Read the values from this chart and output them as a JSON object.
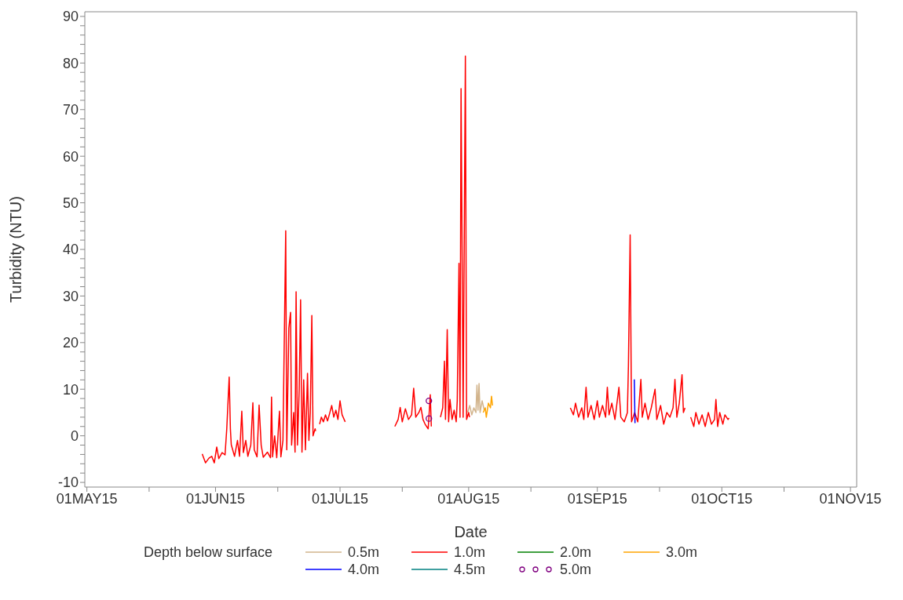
{
  "chart_data": {
    "type": "line",
    "xlabel": "Date",
    "ylabel": "Turbidity (NTU)",
    "legend_title": "Depth below surface",
    "legend": "bottom",
    "marker": "none",
    "xlim": [
      "2015-04-30T12:00",
      "2015-11-02T12:00"
    ],
    "xticks": [
      {
        "value": "2015-05-01",
        "label": "01MAY15"
      },
      {
        "value": "2015-05-16",
        "label": null
      },
      {
        "value": "2015-06-01",
        "label": "01JUN15"
      },
      {
        "value": "2015-06-16",
        "label": null
      },
      {
        "value": "2015-07-01",
        "label": "01JUL15"
      },
      {
        "value": "2015-07-16",
        "label": null
      },
      {
        "value": "2015-08-01",
        "label": "01AUG15"
      },
      {
        "value": "2015-08-16",
        "label": null
      },
      {
        "value": "2015-09-01",
        "label": "01SEP15"
      },
      {
        "value": "2015-09-16",
        "label": null
      },
      {
        "value": "2015-10-01",
        "label": "01OCT15"
      },
      {
        "value": "2015-10-16",
        "label": null
      },
      {
        "value": "2015-11-01",
        "label": "01NOV15"
      }
    ],
    "ylim": [
      -11,
      91
    ],
    "yticks": [
      -10,
      {
        "value": -8,
        "label": null
      },
      {
        "value": -6,
        "label": null
      },
      {
        "value": -4,
        "label": null
      },
      {
        "value": -2,
        "label": null
      },
      0,
      {
        "value": 2,
        "label": null
      },
      {
        "value": 4,
        "label": null
      },
      {
        "value": 6,
        "label": null
      },
      {
        "value": 8,
        "label": null
      },
      10,
      {
        "value": 12,
        "label": null
      },
      {
        "value": 14,
        "label": null
      },
      {
        "value": 16,
        "label": null
      },
      {
        "value": 18,
        "label": null
      },
      20,
      {
        "value": 22,
        "label": null
      },
      {
        "value": 24,
        "label": null
      },
      {
        "value": 26,
        "label": null
      },
      {
        "value": 28,
        "label": null
      },
      30,
      {
        "value": 32,
        "label": null
      },
      {
        "value": 34,
        "label": null
      },
      {
        "value": 36,
        "label": null
      },
      {
        "value": 38,
        "label": null
      },
      40,
      {
        "value": 42,
        "label": null
      },
      {
        "value": 44,
        "label": null
      },
      {
        "value": 46,
        "label": null
      },
      {
        "value": 48,
        "label": null
      },
      50,
      {
        "value": 52,
        "label": null
      },
      {
        "value": 54,
        "label": null
      },
      {
        "value": 56,
        "label": null
      },
      {
        "value": 58,
        "label": null
      },
      60,
      {
        "value": 62,
        "label": null
      },
      {
        "value": 64,
        "label": null
      },
      {
        "value": 66,
        "label": null
      },
      {
        "value": 68,
        "label": null
      },
      70,
      {
        "value": 72,
        "label": null
      },
      {
        "value": 74,
        "label": null
      },
      {
        "value": 76,
        "label": null
      },
      {
        "value": 78,
        "label": null
      },
      80,
      {
        "value": 82,
        "label": null
      },
      {
        "value": 84,
        "label": null
      },
      {
        "value": 86,
        "label": null
      },
      {
        "value": 88,
        "label": null
      },
      90
    ],
    "series": [
      {
        "name": "0.5m",
        "color": "#d2b48c",
        "x": [
          "2015-07-31T18:00",
          "2015-08-01T06:00",
          "2015-08-01T18:00",
          "2015-08-02T06:00",
          "2015-08-02T18:00",
          "2015-08-03T00:00",
          "2015-08-03T06:00",
          "2015-08-03T12:00",
          "2015-08-03T18:00",
          "2015-08-04T06:00",
          "2015-08-04T18:00"
        ],
        "values": [
          5.0,
          6.5,
          4.5,
          6.0,
          5.0,
          10.9,
          5.5,
          11.2,
          5.0,
          7.5,
          5.5
        ]
      },
      {
        "name": "1.0m",
        "color": "#ff0000",
        "x": [
          "2015-05-28T19:00",
          "2015-05-29T14:00",
          "2015-05-30T10:00",
          "2015-05-31T02:00",
          "2015-05-31T17:00",
          "2015-06-01T07:00",
          "2015-06-01T19:00",
          "2015-06-02T14:00",
          "2015-06-03T07:00",
          "2015-06-03T17:00",
          "2015-06-04T07:00",
          "2015-06-04T14:00",
          "2015-06-04T19:00",
          "2015-06-05T14:00",
          "2015-06-06T07:00",
          "2015-06-06T19:00",
          "2015-06-07T08:00",
          "2015-06-07T17:00",
          "2015-06-08T07:00",
          "2015-06-08T19:00",
          "2015-06-09T12:00",
          "2015-06-10T00:00",
          "2015-06-10T08:00",
          "2015-06-11T00:00",
          "2015-06-11T12:00",
          "2015-06-12T00:00",
          "2015-06-12T12:00",
          "2015-06-13T12:00",
          "2015-06-14T06:00",
          "2015-06-14T12:00",
          "2015-06-14T18:00",
          "2015-06-15T06:00",
          "2015-06-15T18:00",
          "2015-06-16T06:00",
          "2015-06-16T10:00",
          "2015-06-16T18:00",
          "2015-06-17T06:00",
          "2015-06-17T22:00",
          "2015-06-18T04:00",
          "2015-06-18T16:00",
          "2015-06-19T02:00",
          "2015-06-19T08:00",
          "2015-06-19T20:00",
          "2015-06-20T04:00",
          "2015-06-20T10:00",
          "2015-06-20T18:00",
          "2015-06-21T04:00",
          "2015-06-21T12:00",
          "2015-06-21T20:00",
          "2015-06-22T06:00",
          "2015-06-22T16:00",
          "2015-06-23T04:00",
          "2015-06-23T12:00",
          "2015-06-23T20:00",
          "2015-06-24T05:00",
          "2015-06-24T12:00",
          "2015-06-25T00:00",
          "2015-06-25T03:00",
          "2015-06-25T12:00",
          "2015-06-26T02:00",
          "2015-06-26T12:00",
          "2015-06-27T00:00",
          "2015-06-27T12:00",
          "2015-06-28T00:00",
          "2015-06-28T12:00",
          "2015-06-29T00:00",
          "2015-06-29T12:00",
          "2015-06-30T00:00",
          "2015-06-30T12:00",
          "2015-07-01T00:00",
          "2015-07-01T12:00",
          "2015-07-02T06:00",
          "2015-07-08T00:00",
          "2015-07-14T05:00",
          "2015-07-15T00:00",
          "2015-07-15T12:00",
          "2015-07-16T00:00",
          "2015-07-16T18:00",
          "2015-07-17T12:00",
          "2015-07-18T06:00",
          "2015-07-18T18:00",
          "2015-07-19T06:00",
          "2015-07-20T00:00",
          "2015-07-20T12:00",
          "2015-07-21T00:00",
          "2015-07-21T12:00",
          "2015-07-22T06:00",
          "2015-07-22T18:00",
          "2015-07-23T00:00",
          "2015-07-24T00:00",
          "2015-07-25T05:00",
          "2015-07-25T18:00",
          "2015-07-26T04:00",
          "2015-07-26T10:00",
          "2015-07-26T20:00",
          "2015-07-27T04:00",
          "2015-07-27T12:00",
          "2015-07-28T00:00",
          "2015-07-28T12:00",
          "2015-07-29T00:00",
          "2015-07-29T06:00",
          "2015-07-29T16:00",
          "2015-07-29T22:00",
          "2015-07-30T04:00",
          "2015-07-30T10:00",
          "2015-07-30T16:00",
          "2015-07-31T05:00",
          "2015-07-31T12:00",
          "2015-08-01T00:00",
          "2015-08-01T05:00",
          "2015-08-02T00:00",
          "2015-08-25T12:00",
          "2015-08-26T06:00",
          "2015-08-26T18:00",
          "2015-08-27T12:00",
          "2015-08-28T06:00",
          "2015-08-28T18:00",
          "2015-08-29T07:00",
          "2015-08-29T18:00",
          "2015-08-30T12:00",
          "2015-08-31T06:00",
          "2015-09-01T00:00",
          "2015-09-01T12:00",
          "2015-09-02T06:00",
          "2015-09-03T00:00",
          "2015-09-03T10:00",
          "2015-09-03T20:00",
          "2015-09-04T12:00",
          "2015-09-05T06:00",
          "2015-09-06T05:00",
          "2015-09-06T16:00",
          "2015-09-07T12:00",
          "2015-09-08T06:00",
          "2015-09-08T12:00",
          "2015-09-08T22:00",
          "2015-09-09T06:00",
          "2015-09-10T00:00",
          "2015-09-10T18:00",
          "2015-09-11T12:00",
          "2015-09-11T20:00",
          "2015-09-12T12:00",
          "2015-09-13T06:00",
          "2015-09-14T00:00",
          "2015-09-14T22:00",
          "2015-09-15T08:00",
          "2015-09-16T06:00",
          "2015-09-17T00:00",
          "2015-09-17T18:00",
          "2015-09-18T12:00",
          "2015-09-19T06:00",
          "2015-09-19T17:00",
          "2015-09-20T04:00",
          "2015-09-20T18:00",
          "2015-09-21T10:00",
          "2015-09-21T18:00",
          "2015-09-22T03:00",
          "2015-09-23T00:00",
          "2015-09-23T12:00",
          "2015-09-24T06:00",
          "2015-09-24T18:00",
          "2015-09-25T12:00",
          "2015-09-26T06:00",
          "2015-09-27T00:00",
          "2015-09-27T18:00",
          "2015-09-28T12:00",
          "2015-09-29T06:00",
          "2015-09-29T14:00",
          "2015-09-30T00:00",
          "2015-09-30T12:00",
          "2015-10-01T06:00",
          "2015-10-01T18:00",
          "2015-10-02T12:00",
          "2015-10-02T18:00"
        ],
        "values": [
          -3.9,
          -5.8,
          -4.8,
          -4.4,
          -5.8,
          -2.4,
          -4.9,
          -3.6,
          -4.1,
          1.5,
          12.6,
          1.5,
          -1.9,
          -4.4,
          -1.0,
          -4.4,
          5.3,
          -3.6,
          -1.0,
          -4.4,
          -2.0,
          7.1,
          -3.0,
          -4.5,
          6.6,
          -2.0,
          -4.6,
          -3.5,
          -4.7,
          8.3,
          -4.5,
          0.0,
          -4.7,
          3.0,
          5.3,
          -4.5,
          -1.0,
          44.0,
          -3.0,
          23.1,
          26.5,
          -2.0,
          5.0,
          -3.5,
          30.9,
          -2.0,
          10.0,
          29.2,
          -3.5,
          12.0,
          -3.0,
          13.4,
          -1.0,
          5.0,
          25.8,
          0.0,
          1.5,
          1.0,
          null,
          2.5,
          4.0,
          3.0,
          4.5,
          3.2,
          4.8,
          6.5,
          4.0,
          5.5,
          3.5,
          7.5,
          4.5,
          3.0,
          null,
          2.0,
          3.5,
          6.1,
          3.0,
          5.8,
          3.5,
          4.5,
          10.2,
          4.0,
          5.0,
          6.1,
          3.5,
          2.5,
          1.5,
          8.8,
          2.0,
          null,
          4.0,
          6.0,
          16.0,
          3.5,
          22.8,
          3.0,
          7.8,
          3.5,
          5.5,
          3.0,
          7.5,
          37.0,
          4.0,
          74.5,
          40.5,
          4.0,
          81.5,
          3.5,
          5.0,
          4.0,
          null,
          6.0,
          4.5,
          7.0,
          4.0,
          6.0,
          3.5,
          10.4,
          4.0,
          6.5,
          3.5,
          7.5,
          4.0,
          6.5,
          4.0,
          10.4,
          4.5,
          7.0,
          3.5,
          10.4,
          4.0,
          3.0,
          5.0,
          15.1,
          43.1,
          3.0,
          5.0,
          3.0,
          12.1,
          4.0,
          7.0,
          3.5,
          6.0,
          10.0,
          3.5,
          6.5,
          2.5,
          5.0,
          4.0,
          6.0,
          12.1,
          4.0,
          7.0,
          13.1,
          5.0,
          6.0,
          null,
          4.0,
          2.0,
          5.0,
          2.5,
          4.5,
          2.0,
          5.0,
          2.5,
          3.5,
          7.8,
          2.0,
          5.0,
          2.5,
          4.5,
          3.5,
          3.8
        ]
      },
      {
        "name": "2.0m",
        "color": "#008000"
      },
      {
        "name": "3.0m",
        "color": "#ffa500",
        "x": [
          "2015-08-04T12:00",
          "2015-08-05T00:00",
          "2015-08-05T06:00",
          "2015-08-05T18:00",
          "2015-08-06T06:00",
          "2015-08-06T12:00",
          "2015-08-06T18:00"
        ],
        "values": [
          5.0,
          6.0,
          4.0,
          7.0,
          6.0,
          8.5,
          6.5
        ]
      },
      {
        "name": "4.0m",
        "color": "#0000ff",
        "x": [
          "2015-09-09T22:00",
          "2015-09-10T02:00"
        ],
        "values": [
          12.1,
          2.7
        ]
      },
      {
        "name": "4.5m",
        "color": "#008080"
      },
      {
        "name": "5.0m",
        "color": "#800080",
        "type": "scatter",
        "marker": "circle",
        "x": [
          "2015-07-22T10:00",
          "2015-07-22T10:00"
        ],
        "values": [
          7.5,
          3.7
        ]
      }
    ]
  }
}
